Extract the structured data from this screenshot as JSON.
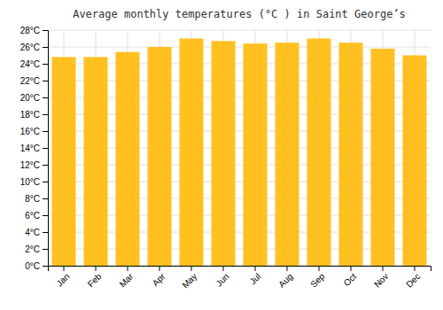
{
  "chart_data": {
    "type": "bar",
    "title": "Average monthly temperatures (°C ) in Saint George’s",
    "categories": [
      "Jan",
      "Feb",
      "Mar",
      "Apr",
      "May",
      "Jun",
      "Jul",
      "Aug",
      "Sep",
      "Oct",
      "Nov",
      "Dec"
    ],
    "values": [
      24.8,
      24.8,
      25.4,
      26.0,
      27.0,
      26.7,
      26.4,
      26.5,
      27.0,
      26.5,
      25.8,
      25.0
    ],
    "color": "#FFC020",
    "ylim": [
      0,
      28
    ],
    "yticks": [
      {
        "value": 0,
        "label": "0°C"
      },
      {
        "value": 2,
        "label": "2°C"
      },
      {
        "value": 4,
        "label": "4°C"
      },
      {
        "value": 6,
        "label": "6°C"
      },
      {
        "value": 8,
        "label": "8°C"
      },
      {
        "value": 10,
        "label": "10°C"
      },
      {
        "value": 12,
        "label": "12°C"
      },
      {
        "value": 14,
        "label": "14°C"
      },
      {
        "value": 16,
        "label": "16°C"
      },
      {
        "value": 18,
        "label": "18°C"
      },
      {
        "value": 20,
        "label": "20°C"
      },
      {
        "value": 22,
        "label": "22°C"
      },
      {
        "value": 24,
        "label": "24°C"
      },
      {
        "value": 26,
        "label": "26°C"
      },
      {
        "value": 28,
        "label": "28°C"
      }
    ],
    "grid": true
  }
}
